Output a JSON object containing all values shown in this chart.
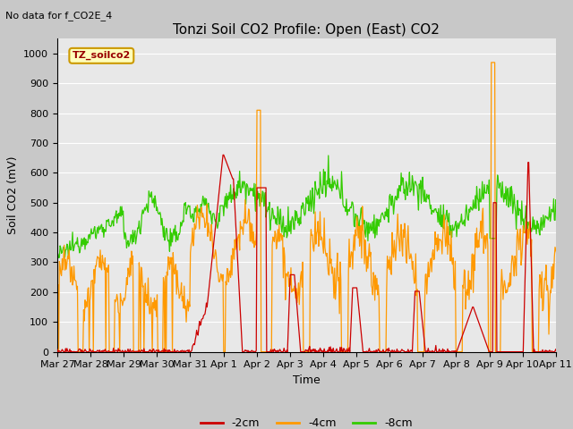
{
  "title": "Tonzi Soil CO2 Profile: Open (East) CO2",
  "subtitle": "No data for f_CO2E_4",
  "ylabel": "Soil CO2 (mV)",
  "xlabel": "Time",
  "legend_label": "TZ_soilco2",
  "series_labels": [
    "-2cm",
    "-4cm",
    "-8cm"
  ],
  "series_colors": [
    "#cc0000",
    "#ff9900",
    "#33cc00"
  ],
  "ylim": [
    0,
    1050
  ],
  "yticks": [
    0,
    100,
    200,
    300,
    400,
    500,
    600,
    700,
    800,
    900,
    1000
  ],
  "fig_bg_color": "#c8c8c8",
  "plot_bg_color": "#e8e8e8",
  "grid_color": "#ffffff",
  "tick_labels": [
    "Mar 27",
    "Mar 28",
    "Mar 29",
    "Mar 30",
    "Mar 31",
    "Apr 1",
    "Apr 2",
    "Apr 3",
    "Apr 4",
    "Apr 5",
    "Apr 6",
    "Apr 7",
    "Apr 8",
    "Apr 9",
    "Apr 10",
    "Apr 11"
  ]
}
